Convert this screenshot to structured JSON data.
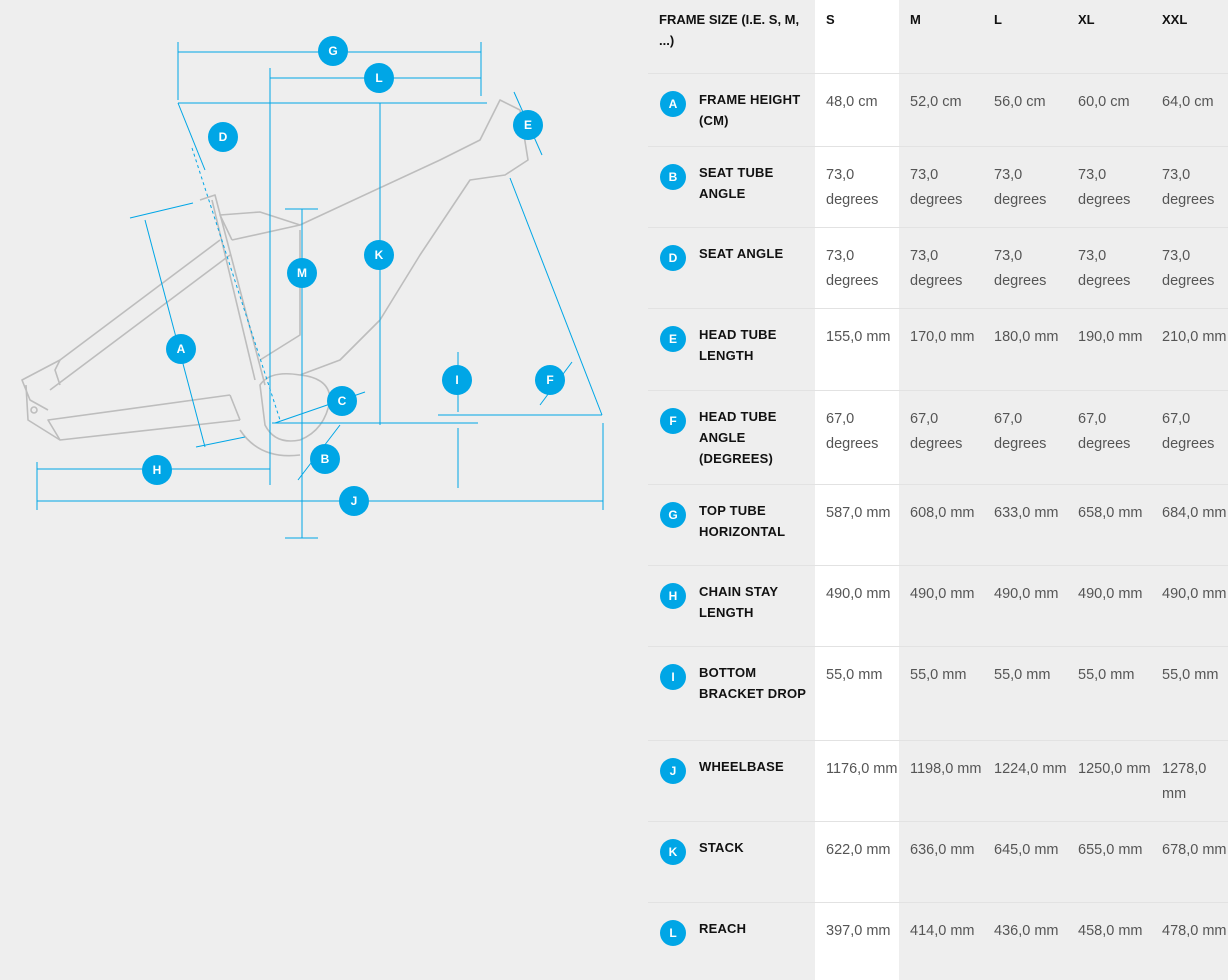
{
  "diagram": {
    "labels": [
      "G",
      "L",
      "D",
      "E",
      "K",
      "M",
      "A",
      "I",
      "F",
      "C",
      "B",
      "H",
      "J"
    ]
  },
  "table": {
    "header": [
      "FRAME SIZE (I.E. S, M, ...)",
      "S",
      "M",
      "L",
      "XL",
      "XXL"
    ],
    "rows": [
      {
        "letter": "A",
        "label": "FRAME HEIGHT (CM)",
        "values": [
          "48,0 cm",
          "52,0 cm",
          "56,0 cm",
          "60,0 cm",
          "64,0 cm"
        ]
      },
      {
        "letter": "B",
        "label": "SEAT TUBE ANGLE",
        "values": [
          "73,0 degrees",
          "73,0 degrees",
          "73,0 degrees",
          "73,0 degrees",
          "73,0 degrees"
        ]
      },
      {
        "letter": "D",
        "label": "SEAT ANGLE",
        "values": [
          "73,0 degrees",
          "73,0 degrees",
          "73,0 degrees",
          "73,0 degrees",
          "73,0 degrees"
        ]
      },
      {
        "letter": "E",
        "label": "HEAD TUBE LENGTH",
        "values": [
          "155,0 mm",
          "170,0 mm",
          "180,0 mm",
          "190,0 mm",
          "210,0 mm"
        ]
      },
      {
        "letter": "F",
        "label": "HEAD TUBE ANGLE (DEGREES)",
        "values": [
          "67,0 degrees",
          "67,0 degrees",
          "67,0 degrees",
          "67,0 degrees",
          "67,0 degrees"
        ]
      },
      {
        "letter": "G",
        "label": "TOP TUBE HORIZONTAL",
        "values": [
          "587,0 mm",
          "608,0 mm",
          "633,0 mm",
          "658,0 mm",
          "684,0 mm"
        ]
      },
      {
        "letter": "H",
        "label": "CHAIN STAY LENGTH",
        "values": [
          "490,0 mm",
          "490,0 mm",
          "490,0 mm",
          "490,0 mm",
          "490,0 mm"
        ]
      },
      {
        "letter": "I",
        "label": "BOTTOM BRACKET DROP",
        "values": [
          "55,0 mm",
          "55,0 mm",
          "55,0 mm",
          "55,0 mm",
          "55,0 mm"
        ]
      },
      {
        "letter": "J",
        "label": "WHEELBASE",
        "values": [
          "1176,0 mm",
          "1198,0 mm",
          "1224,0 mm",
          "1250,0 mm",
          "1278,0 mm"
        ]
      },
      {
        "letter": "K",
        "label": "STACK",
        "values": [
          "622,0 mm",
          "636,0 mm",
          "645,0 mm",
          "655,0 mm",
          "678,0 mm"
        ]
      },
      {
        "letter": "L",
        "label": "REACH",
        "values": [
          "397,0 mm",
          "414,0 mm",
          "436,0 mm",
          "458,0 mm",
          "478,0 mm"
        ]
      }
    ]
  },
  "colors": {
    "accent": "#00a6e6",
    "frame": "#bdbdbd",
    "highlight": "#ffffff",
    "background": "#eeeeee"
  }
}
